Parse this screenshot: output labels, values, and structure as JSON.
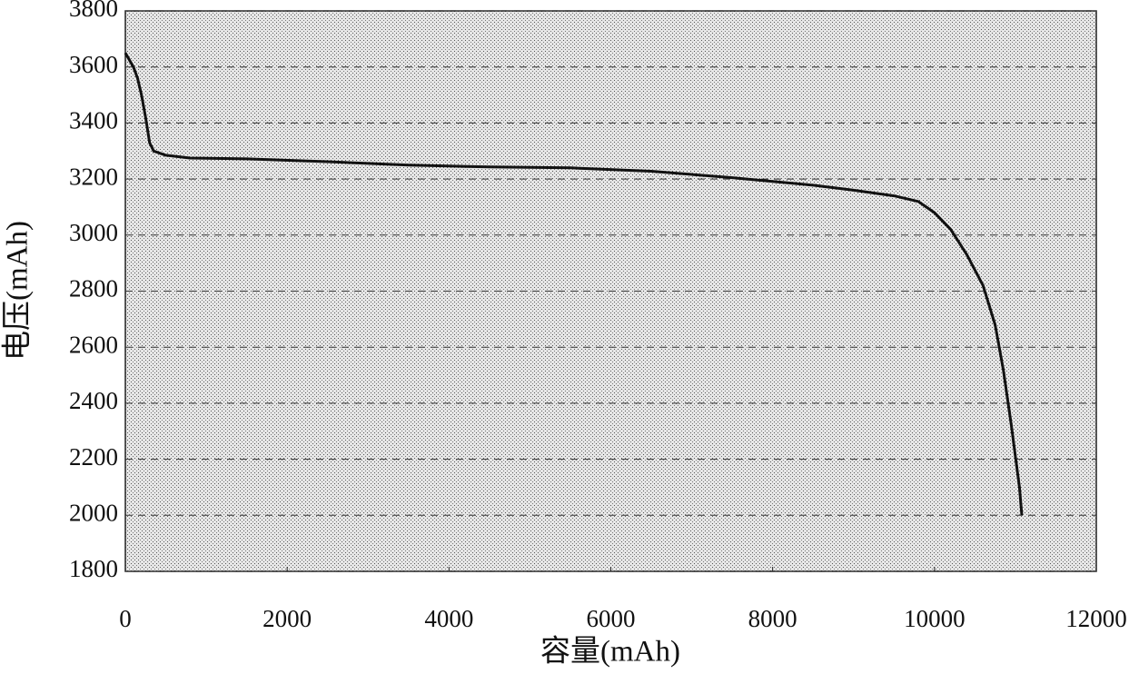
{
  "chart_data": {
    "type": "line",
    "x_label": "容量(mAh)",
    "y_label": "电压(mAh)",
    "x": [
      0,
      100,
      150,
      200,
      250,
      300,
      350,
      500,
      800,
      1500,
      2500,
      3500,
      4500,
      5500,
      6500,
      7500,
      8500,
      9000,
      9500,
      9800,
      10000,
      10200,
      10400,
      10600,
      10750,
      10850,
      10950,
      11050,
      11080
    ],
    "values": [
      3650,
      3600,
      3560,
      3500,
      3420,
      3330,
      3300,
      3285,
      3275,
      3272,
      3262,
      3250,
      3243,
      3240,
      3228,
      3205,
      3178,
      3160,
      3140,
      3120,
      3080,
      3020,
      2930,
      2820,
      2680,
      2520,
      2320,
      2100,
      2000
    ],
    "color": "#111111",
    "xlim": [
      0,
      12000
    ],
    "xticks": [
      0,
      2000,
      4000,
      6000,
      8000,
      10000,
      12000
    ],
    "ylim": [
      1800,
      3800
    ],
    "yticks": [
      1800,
      2000,
      2200,
      2400,
      2600,
      2800,
      3000,
      3200,
      3400,
      3600,
      3800
    ],
    "grid": true
  }
}
